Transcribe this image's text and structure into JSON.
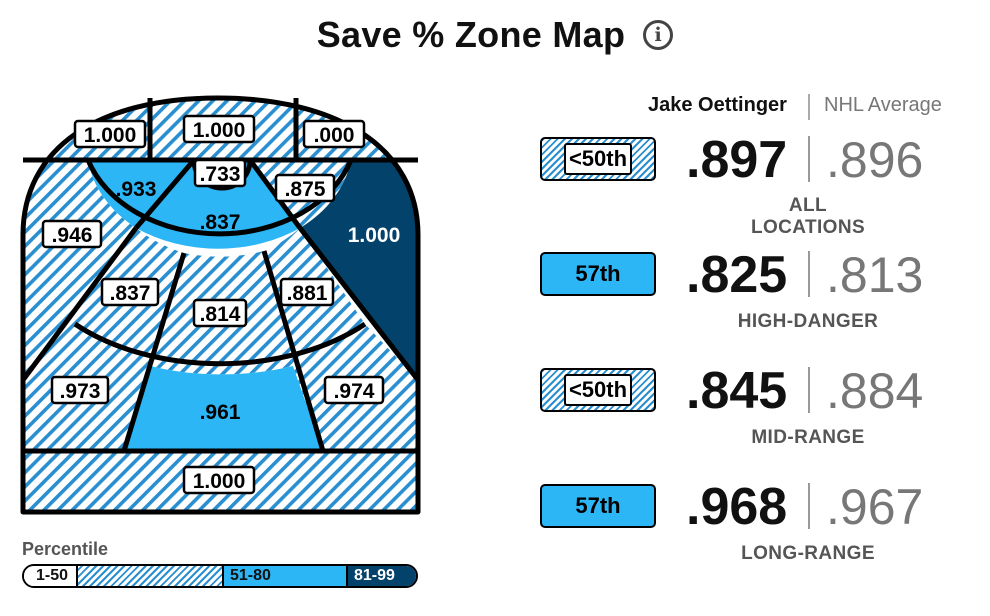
{
  "title": "Save % Zone Map",
  "info_icon": "info-icon",
  "chart_data": {
    "type": "heatmap",
    "title": "Save % Zone Map",
    "zones": [
      {
        "id": "top-left",
        "value": "1.000",
        "fill": "hatch"
      },
      {
        "id": "top-center",
        "value": "1.000",
        "fill": "hatch"
      },
      {
        "id": "top-right",
        "value": ".000",
        "fill": "hatch"
      },
      {
        "id": "crease-left",
        "value": ".933",
        "fill": "light"
      },
      {
        "id": "crease-center-top",
        "value": ".733",
        "fill": "hatch"
      },
      {
        "id": "crease-right",
        "value": ".875",
        "fill": "hatch"
      },
      {
        "id": "crease-center",
        "value": ".837",
        "fill": "light"
      },
      {
        "id": "left-point",
        "value": ".946",
        "fill": "hatch"
      },
      {
        "id": "right-point",
        "value": "1.000",
        "fill": "dark"
      },
      {
        "id": "slot-left",
        "value": ".837",
        "fill": "hatch"
      },
      {
        "id": "slot-center",
        "value": ".814",
        "fill": "hatch"
      },
      {
        "id": "slot-right",
        "value": ".881",
        "fill": "hatch"
      },
      {
        "id": "outer-left",
        "value": ".973",
        "fill": "hatch"
      },
      {
        "id": "high-slot",
        "value": ".961",
        "fill": "light"
      },
      {
        "id": "outer-right",
        "value": ".974",
        "fill": "hatch"
      },
      {
        "id": "blue-line",
        "value": "1.000",
        "fill": "hatch"
      }
    ],
    "colors": {
      "hatch": "#2a8fd0",
      "light": "#2db6f5",
      "dark": "#03426a"
    },
    "legend": {
      "title": "Percentile",
      "bands": [
        {
          "label": "1-50",
          "fill": "hatch"
        },
        {
          "label": "51-80",
          "fill": "light"
        },
        {
          "label": "81-99",
          "fill": "dark"
        }
      ]
    }
  },
  "comparison": {
    "player": "Jake Oettinger",
    "league": "NHL Average",
    "rows": [
      {
        "percentile": "<50th",
        "style": "hatch",
        "player_value": ".897",
        "avg_value": ".896",
        "label": "ALL LOCATIONS"
      },
      {
        "percentile": "57th",
        "style": "solid",
        "player_value": ".825",
        "avg_value": ".813",
        "label": "HIGH-DANGER"
      },
      {
        "percentile": "<50th",
        "style": "hatch",
        "player_value": ".845",
        "avg_value": ".884",
        "label": "MID-RANGE"
      },
      {
        "percentile": "57th",
        "style": "solid",
        "player_value": ".968",
        "avg_value": ".967",
        "label": "LONG-RANGE"
      }
    ]
  }
}
